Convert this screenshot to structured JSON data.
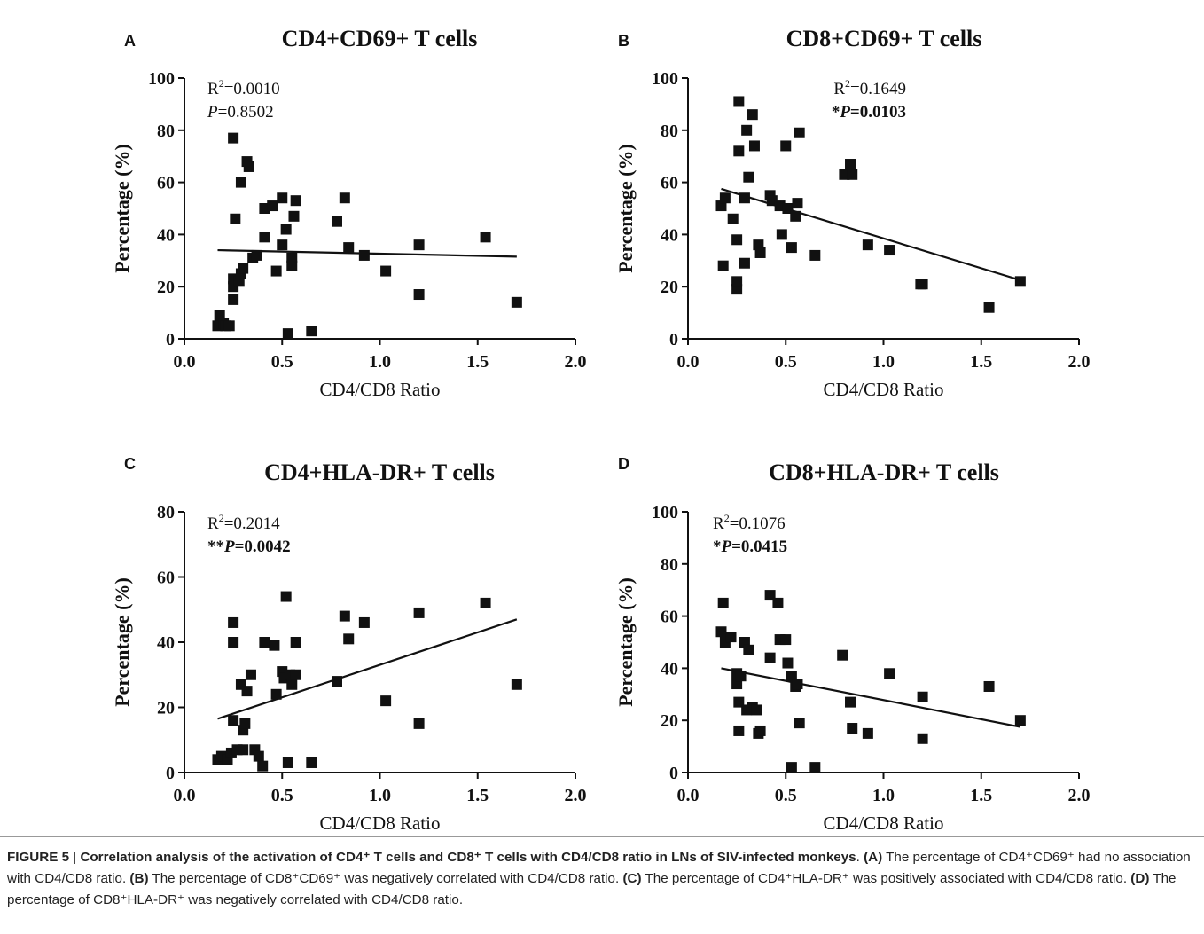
{
  "chart_data": [
    {
      "panel": "A",
      "type": "scatter",
      "title": "CD4+CD69+ T cells",
      "xlabel": "CD4/CD8 Ratio",
      "ylabel": "Percentage (%)",
      "xlim": [
        0,
        2.0
      ],
      "ylim": [
        0,
        100
      ],
      "xticks": [
        "0.0",
        "0.5",
        "1.0",
        "1.5",
        "2.0"
      ],
      "yticks": [
        "0",
        "20",
        "40",
        "60",
        "80",
        "100"
      ],
      "stat_lines": [
        {
          "prefix": "",
          "sup_text": "R2=0.0010",
          "pre": "R",
          "sup": "2",
          "post": "=0.0010",
          "bold": false
        },
        {
          "prefix": "",
          "pre": "P",
          "post": "=0.8502",
          "italic_pre": true,
          "bold": false
        }
      ],
      "regression": {
        "x": [
          0.17,
          1.7
        ],
        "y": [
          34.0,
          31.5
        ]
      },
      "points": [
        {
          "x": 0.17,
          "y": 5
        },
        {
          "x": 0.18,
          "y": 9
        },
        {
          "x": 0.2,
          "y": 6
        },
        {
          "x": 0.21,
          "y": 5
        },
        {
          "x": 0.23,
          "y": 5
        },
        {
          "x": 0.25,
          "y": 15
        },
        {
          "x": 0.25,
          "y": 20
        },
        {
          "x": 0.25,
          "y": 23
        },
        {
          "x": 0.26,
          "y": 46
        },
        {
          "x": 0.25,
          "y": 77
        },
        {
          "x": 0.28,
          "y": 22
        },
        {
          "x": 0.29,
          "y": 25
        },
        {
          "x": 0.3,
          "y": 27
        },
        {
          "x": 0.29,
          "y": 60
        },
        {
          "x": 0.32,
          "y": 68
        },
        {
          "x": 0.33,
          "y": 66
        },
        {
          "x": 0.35,
          "y": 31
        },
        {
          "x": 0.37,
          "y": 32
        },
        {
          "x": 0.41,
          "y": 39
        },
        {
          "x": 0.41,
          "y": 50
        },
        {
          "x": 0.45,
          "y": 51
        },
        {
          "x": 0.47,
          "y": 26
        },
        {
          "x": 0.5,
          "y": 36
        },
        {
          "x": 0.5,
          "y": 54
        },
        {
          "x": 0.52,
          "y": 42
        },
        {
          "x": 0.53,
          "y": 2
        },
        {
          "x": 0.55,
          "y": 28
        },
        {
          "x": 0.55,
          "y": 31
        },
        {
          "x": 0.56,
          "y": 47
        },
        {
          "x": 0.57,
          "y": 53
        },
        {
          "x": 0.65,
          "y": 3
        },
        {
          "x": 0.78,
          "y": 45
        },
        {
          "x": 0.82,
          "y": 54
        },
        {
          "x": 0.84,
          "y": 35
        },
        {
          "x": 0.92,
          "y": 32
        },
        {
          "x": 1.03,
          "y": 26
        },
        {
          "x": 1.2,
          "y": 17
        },
        {
          "x": 1.2,
          "y": 36
        },
        {
          "x": 1.54,
          "y": 39
        },
        {
          "x": 1.7,
          "y": 14
        }
      ]
    },
    {
      "panel": "B",
      "type": "scatter",
      "title": "CD8+CD69+ T cells",
      "xlabel": "CD4/CD8 Ratio",
      "ylabel": "Percentage (%)",
      "xlim": [
        0,
        2.0
      ],
      "ylim": [
        0,
        100
      ],
      "xticks": [
        "0.0",
        "0.5",
        "1.0",
        "1.5",
        "2.0"
      ],
      "yticks": [
        "0",
        "20",
        "40",
        "60",
        "80",
        "100"
      ],
      "stat_lines": [
        {
          "prefix": "",
          "pre": "R",
          "sup": "2",
          "post": "=0.1649",
          "bold": false
        },
        {
          "prefix": "*",
          "pre": "P",
          "post": "=0.0103",
          "italic_pre": true,
          "bold": true
        }
      ],
      "regression": {
        "x": [
          0.17,
          1.7
        ],
        "y": [
          57.5,
          22.5
        ]
      },
      "points": [
        {
          "x": 0.17,
          "y": 51
        },
        {
          "x": 0.18,
          "y": 28
        },
        {
          "x": 0.19,
          "y": 54
        },
        {
          "x": 0.23,
          "y": 46
        },
        {
          "x": 0.25,
          "y": 19
        },
        {
          "x": 0.25,
          "y": 22
        },
        {
          "x": 0.25,
          "y": 38
        },
        {
          "x": 0.26,
          "y": 72
        },
        {
          "x": 0.26,
          "y": 91
        },
        {
          "x": 0.29,
          "y": 29
        },
        {
          "x": 0.29,
          "y": 54
        },
        {
          "x": 0.3,
          "y": 80
        },
        {
          "x": 0.31,
          "y": 62
        },
        {
          "x": 0.33,
          "y": 86
        },
        {
          "x": 0.34,
          "y": 74
        },
        {
          "x": 0.36,
          "y": 36
        },
        {
          "x": 0.37,
          "y": 33
        },
        {
          "x": 0.42,
          "y": 55
        },
        {
          "x": 0.43,
          "y": 53
        },
        {
          "x": 0.47,
          "y": 51
        },
        {
          "x": 0.48,
          "y": 40
        },
        {
          "x": 0.5,
          "y": 74
        },
        {
          "x": 0.51,
          "y": 50
        },
        {
          "x": 0.53,
          "y": 35
        },
        {
          "x": 0.55,
          "y": 47
        },
        {
          "x": 0.56,
          "y": 52
        },
        {
          "x": 0.57,
          "y": 79
        },
        {
          "x": 0.65,
          "y": 32
        },
        {
          "x": 0.8,
          "y": 63
        },
        {
          "x": 0.83,
          "y": 67
        },
        {
          "x": 0.84,
          "y": 63
        },
        {
          "x": 0.92,
          "y": 36
        },
        {
          "x": 1.03,
          "y": 34
        },
        {
          "x": 1.19,
          "y": 21
        },
        {
          "x": 1.2,
          "y": 21
        },
        {
          "x": 1.54,
          "y": 12
        },
        {
          "x": 1.7,
          "y": 22
        }
      ]
    },
    {
      "panel": "C",
      "type": "scatter",
      "title": "CD4+HLA-DR+ T cells",
      "xlabel": "CD4/CD8 Ratio",
      "ylabel": "Percentage (%)",
      "xlim": [
        0,
        2.0
      ],
      "ylim": [
        0,
        80
      ],
      "xticks": [
        "0.0",
        "0.5",
        "1.0",
        "1.5",
        "2.0"
      ],
      "yticks": [
        "0",
        "20",
        "40",
        "60",
        "80"
      ],
      "stat_lines": [
        {
          "prefix": "",
          "pre": "R",
          "sup": "2",
          "post": "=0.2014",
          "bold": false
        },
        {
          "prefix": "**",
          "pre": "P",
          "post": "=0.0042",
          "italic_pre": true,
          "bold": true
        }
      ],
      "regression": {
        "x": [
          0.17,
          1.7
        ],
        "y": [
          16.5,
          47.0
        ]
      },
      "points": [
        {
          "x": 0.17,
          "y": 4
        },
        {
          "x": 0.19,
          "y": 5
        },
        {
          "x": 0.22,
          "y": 4
        },
        {
          "x": 0.24,
          "y": 6
        },
        {
          "x": 0.25,
          "y": 16
        },
        {
          "x": 0.25,
          "y": 40
        },
        {
          "x": 0.25,
          "y": 46
        },
        {
          "x": 0.27,
          "y": 7
        },
        {
          "x": 0.29,
          "y": 27
        },
        {
          "x": 0.3,
          "y": 13
        },
        {
          "x": 0.3,
          "y": 7
        },
        {
          "x": 0.31,
          "y": 15
        },
        {
          "x": 0.32,
          "y": 25
        },
        {
          "x": 0.34,
          "y": 30
        },
        {
          "x": 0.36,
          "y": 7
        },
        {
          "x": 0.38,
          "y": 5
        },
        {
          "x": 0.4,
          "y": 2
        },
        {
          "x": 0.41,
          "y": 40
        },
        {
          "x": 0.46,
          "y": 39
        },
        {
          "x": 0.47,
          "y": 24
        },
        {
          "x": 0.5,
          "y": 31
        },
        {
          "x": 0.51,
          "y": 29
        },
        {
          "x": 0.52,
          "y": 54
        },
        {
          "x": 0.53,
          "y": 3
        },
        {
          "x": 0.54,
          "y": 30
        },
        {
          "x": 0.55,
          "y": 27
        },
        {
          "x": 0.57,
          "y": 30
        },
        {
          "x": 0.57,
          "y": 40
        },
        {
          "x": 0.65,
          "y": 3
        },
        {
          "x": 0.78,
          "y": 28
        },
        {
          "x": 0.82,
          "y": 48
        },
        {
          "x": 0.84,
          "y": 41
        },
        {
          "x": 0.92,
          "y": 46
        },
        {
          "x": 1.03,
          "y": 22
        },
        {
          "x": 1.2,
          "y": 15
        },
        {
          "x": 1.2,
          "y": 49
        },
        {
          "x": 1.54,
          "y": 52
        },
        {
          "x": 1.7,
          "y": 27
        }
      ]
    },
    {
      "panel": "D",
      "type": "scatter",
      "title": "CD8+HLA-DR+ T cells",
      "xlabel": "CD4/CD8 Ratio",
      "ylabel": "Percentage (%)",
      "xlim": [
        0,
        2.0
      ],
      "ylim": [
        0,
        100
      ],
      "xticks": [
        "0.0",
        "0.5",
        "1.0",
        "1.5",
        "2.0"
      ],
      "yticks": [
        "0",
        "20",
        "40",
        "60",
        "80",
        "100"
      ],
      "stat_lines": [
        {
          "prefix": "",
          "pre": "R",
          "sup": "2",
          "post": "=0.1076",
          "bold": false
        },
        {
          "prefix": "*",
          "pre": "P",
          "post": "=0.0415",
          "italic_pre": true,
          "bold": true
        }
      ],
      "regression": {
        "x": [
          0.17,
          1.7
        ],
        "y": [
          40.0,
          17.5
        ]
      },
      "points": [
        {
          "x": 0.17,
          "y": 54
        },
        {
          "x": 0.18,
          "y": 65
        },
        {
          "x": 0.19,
          "y": 50
        },
        {
          "x": 0.22,
          "y": 52
        },
        {
          "x": 0.25,
          "y": 38
        },
        {
          "x": 0.25,
          "y": 34
        },
        {
          "x": 0.26,
          "y": 27
        },
        {
          "x": 0.26,
          "y": 16
        },
        {
          "x": 0.27,
          "y": 37
        },
        {
          "x": 0.29,
          "y": 50
        },
        {
          "x": 0.3,
          "y": 24
        },
        {
          "x": 0.31,
          "y": 47
        },
        {
          "x": 0.33,
          "y": 25
        },
        {
          "x": 0.35,
          "y": 24
        },
        {
          "x": 0.36,
          "y": 15
        },
        {
          "x": 0.37,
          "y": 16
        },
        {
          "x": 0.42,
          "y": 68
        },
        {
          "x": 0.42,
          "y": 44
        },
        {
          "x": 0.46,
          "y": 65
        },
        {
          "x": 0.47,
          "y": 51
        },
        {
          "x": 0.5,
          "y": 51
        },
        {
          "x": 0.51,
          "y": 42
        },
        {
          "x": 0.53,
          "y": 37
        },
        {
          "x": 0.53,
          "y": 2
        },
        {
          "x": 0.55,
          "y": 33
        },
        {
          "x": 0.56,
          "y": 34
        },
        {
          "x": 0.57,
          "y": 19
        },
        {
          "x": 0.65,
          "y": 2
        },
        {
          "x": 0.79,
          "y": 45
        },
        {
          "x": 0.83,
          "y": 27
        },
        {
          "x": 0.84,
          "y": 17
        },
        {
          "x": 0.92,
          "y": 15
        },
        {
          "x": 1.03,
          "y": 38
        },
        {
          "x": 1.2,
          "y": 13
        },
        {
          "x": 1.2,
          "y": 29
        },
        {
          "x": 1.54,
          "y": 33
        },
        {
          "x": 1.7,
          "y": 20
        }
      ]
    }
  ],
  "caption": {
    "label": "FIGURE 5",
    "separator": " | ",
    "bold_text": "Correlation analysis of the activation of CD4⁺ T cells and CD8⁺ T cells with CD4/CD8 ratio in LNs of SIV-infected monkeys",
    "parts": [
      {
        "tag": "(A)",
        "text": " The percentage of CD4⁺CD69⁺ had no association with CD4/CD8 ratio. "
      },
      {
        "tag": "(B)",
        "text": " The percentage of CD8⁺CD69⁺ was negatively correlated with CD4/CD8 ratio. "
      },
      {
        "tag": "(C)",
        "text": " The percentage of CD4⁺HLA-DR⁺ was positively associated with CD4/CD8 ratio. "
      },
      {
        "tag": "(D)",
        "text": " The percentage of CD8⁺HLA-DR⁺ was negatively correlated with CD4/CD8 ratio."
      }
    ]
  }
}
